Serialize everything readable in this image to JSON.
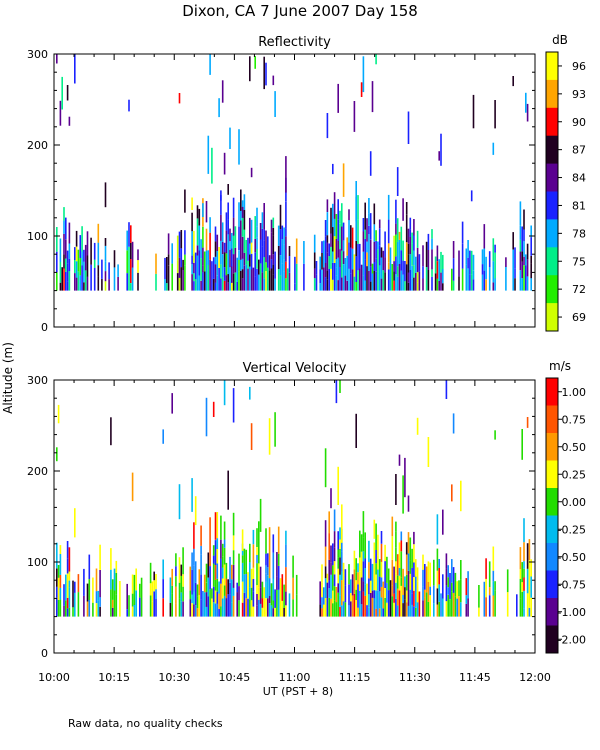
{
  "title": "Dixon, CA   7 June 2007   Day 158",
  "y_axis_label": "Altitude (m)",
  "x_axis_label": "UT   (PST + 8)",
  "footnote": "Raw data, no quality checks",
  "chart_data": [
    {
      "type": "heatmap",
      "title": "Reflectivity",
      "ylabel": "Altitude (m)",
      "xlabel": "UT   (PST + 8)",
      "xlim": [
        0,
        120
      ],
      "ylim": [
        0,
        300
      ],
      "x_ticks": [
        0,
        15,
        30,
        45,
        60,
        75,
        90,
        105,
        120
      ],
      "x_tick_labels": [
        "10:00",
        "10:15",
        "10:30",
        "10:45",
        "11:00",
        "11:15",
        "11:30",
        "11:45",
        "12:00"
      ],
      "y_ticks": [
        0,
        100,
        200,
        300
      ],
      "y_tick_labels": [
        "0",
        "100",
        "200",
        "300"
      ],
      "colorbar": {
        "unit": "dB",
        "ticks": [
          "96",
          "93",
          "90",
          "87",
          "84",
          "81",
          "78",
          "75",
          "72",
          "69"
        ],
        "colors": [
          "#ffff00",
          "#ffa500",
          "#ff0000",
          "#200020",
          "#5a0090",
          "#1a22ff",
          "#00aaff",
          "#00ee88",
          "#22ee00",
          "#d0ff00"
        ]
      },
      "data_extent": {
        "altitude_min_m": 40,
        "altitude_max_m": 300,
        "dense_layer_m": [
          40,
          100
        ],
        "sparse_echoes_above_m": 100
      }
    },
    {
      "type": "heatmap",
      "title": "Vertical Velocity",
      "ylabel": "Altitude (m)",
      "xlabel": "UT   (PST + 8)",
      "xlim": [
        0,
        120
      ],
      "ylim": [
        0,
        300
      ],
      "x_ticks": [
        0,
        15,
        30,
        45,
        60,
        75,
        90,
        105,
        120
      ],
      "x_tick_labels": [
        "10:00",
        "10:15",
        "10:30",
        "10:45",
        "11:00",
        "11:15",
        "11:30",
        "11:45",
        "12:00"
      ],
      "y_ticks": [
        0,
        100,
        200,
        300
      ],
      "y_tick_labels": [
        "0",
        "100",
        "200",
        "300"
      ],
      "colorbar": {
        "unit": "m/s",
        "ticks": [
          "1.00",
          "0.75",
          "0.50",
          "0.25",
          "0.00",
          "-0.25",
          "-0.50",
          "-0.75",
          "-1.00",
          "-2.00"
        ],
        "colors": [
          "#ff0000",
          "#ff5500",
          "#ff9900",
          "#ffff00",
          "#22dd00",
          "#00bbee",
          "#1188ff",
          "#1a22ff",
          "#5a0090",
          "#200020"
        ]
      },
      "data_extent": {
        "altitude_min_m": 40,
        "altitude_max_m": 300,
        "dense_layer_m": [
          40,
          100
        ],
        "sparse_echoes_above_m": 100
      }
    }
  ]
}
